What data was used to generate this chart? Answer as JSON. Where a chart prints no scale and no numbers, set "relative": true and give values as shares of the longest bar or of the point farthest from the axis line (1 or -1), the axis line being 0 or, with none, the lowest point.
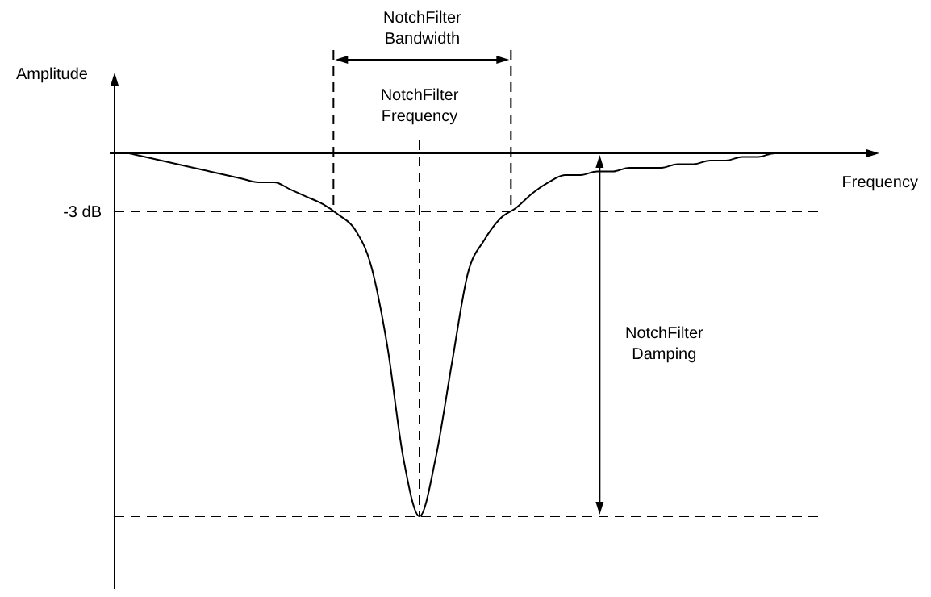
{
  "chart_data": {
    "type": "line",
    "relative": true,
    "xlabel": "Frequency",
    "ylabel": "Amplitude",
    "categories": [
      null,
      null,
      null,
      null,
      null,
      null,
      null,
      null,
      null,
      null,
      null,
      null,
      null,
      null,
      null,
      null,
      null,
      null,
      null,
      null,
      null,
      null,
      null,
      null,
      null,
      null,
      null,
      null,
      null,
      null,
      null,
      null,
      null,
      null,
      null,
      null,
      null,
      null,
      null,
      null,
      null,
      null,
      null
    ],
    "series": [
      {
        "color": "#000000",
        "values": [
          0,
          -0.01,
          -0.02,
          -0.03,
          -0.04,
          -0.05,
          -0.06,
          -0.07,
          -0.08,
          -0.08,
          -0.1,
          -0.12,
          -0.14,
          -0.17,
          -0.21,
          -0.31,
          -0.53,
          -0.84,
          -1,
          -0.84,
          -0.58,
          -0.33,
          -0.24,
          -0.18,
          -0.15,
          -0.11,
          -0.08,
          -0.06,
          -0.06,
          -0.05,
          -0.05,
          -0.04,
          -0.04,
          -0.04,
          -0.03,
          -0.03,
          -0.02,
          -0.02,
          -0.01,
          -0.01,
          0,
          0,
          0
        ]
      }
    ],
    "ref_lines": [
      {
        "axis": "y",
        "value": -0.16,
        "label": "-3 dB",
        "color": "#000000",
        "line_style": "dashed"
      },
      {
        "axis": "y",
        "value": -1,
        "color": "#000000",
        "line_style": "dashed"
      }
    ],
    "annotations": [
      "NotchFilter Bandwidth",
      "NotchFilter Frequency",
      "NotchFilter Damping"
    ],
    "marker": "none",
    "line_style": "solid",
    "grid": false,
    "legend": false
  }
}
